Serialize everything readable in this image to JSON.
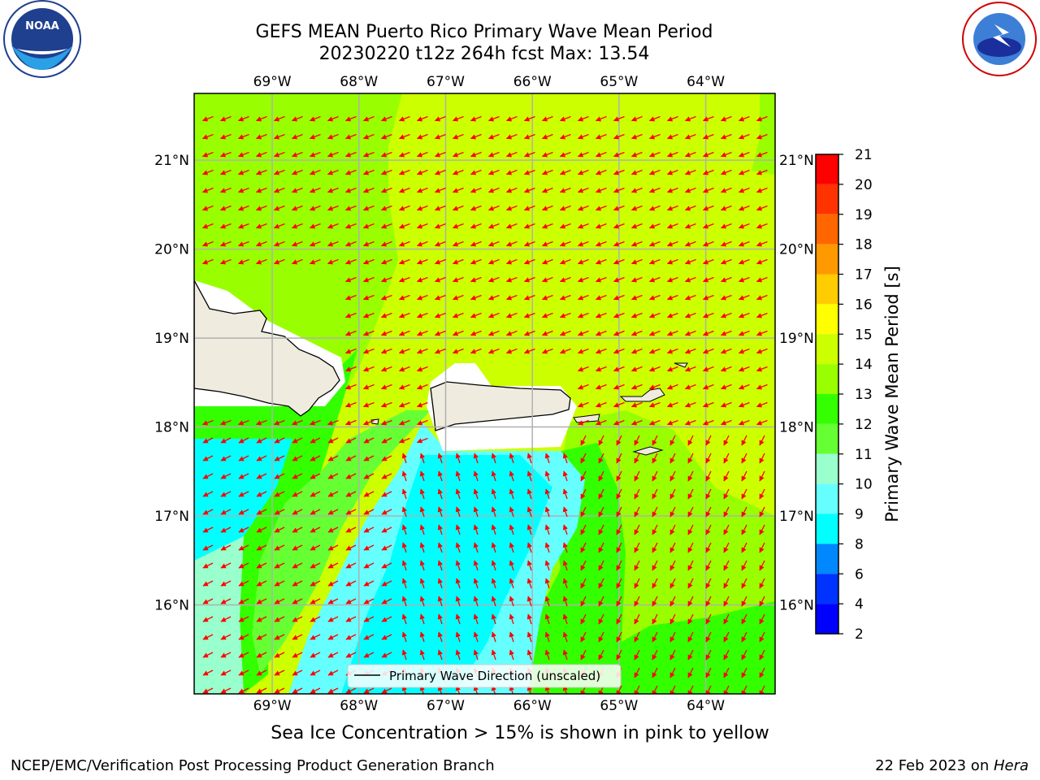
{
  "header": {
    "title_line1": "GEFS MEAN Puerto Rico Primary Wave Mean Period",
    "title_line2": "20230220 t12z 264h fcst   Max: 13.54"
  },
  "logos": {
    "left": {
      "icon": "noaa-logo-icon",
      "text": "NOAA"
    },
    "right": {
      "icon": "nws-logo-icon"
    }
  },
  "map": {
    "lon_labels": [
      "69°W",
      "68°W",
      "67°W",
      "66°W",
      "65°W",
      "64°W"
    ],
    "lat_labels": [
      "21°N",
      "20°N",
      "19°N",
      "18°N",
      "17°N",
      "16°N"
    ],
    "lon_values": [
      -69,
      -68,
      -67,
      -66,
      -65,
      -64
    ],
    "lat_values": [
      21,
      20,
      19,
      18,
      17,
      16
    ],
    "lon_range": [
      -69.9,
      -63.2
    ],
    "lat_range": [
      15.0,
      21.75
    ],
    "grid": true,
    "arrow_color": "#ff0000",
    "land_color": "#efecdf",
    "legend": {
      "label": "Primary Wave Direction (unscaled)",
      "placement": "lower-center"
    }
  },
  "colorbar": {
    "label": "Primary Wave Mean Period [s]",
    "ticks": [
      "21",
      "20",
      "19",
      "18",
      "17",
      "16",
      "15",
      "14",
      "13",
      "12",
      "11",
      "10",
      "9",
      "8",
      "6",
      "4",
      "2"
    ],
    "colors": [
      "#ff0000",
      "#ff3300",
      "#ff6600",
      "#ff9900",
      "#ffcc00",
      "#ffff00",
      "#ccff00",
      "#99ff00",
      "#33ff00",
      "#66ff33",
      "#99ffcc",
      "#66ffff",
      "#00ffff",
      "#0088ff",
      "#0033ff",
      "#0000ff"
    ]
  },
  "notes": {
    "sea_ice": "Sea Ice Concentration > 15% is shown in pink to yellow"
  },
  "footer": {
    "left": "NCEP/EMC/Verification Post Processing Product Generation Branch",
    "right_date": "22 Feb 2023 on ",
    "right_host": "Hera"
  }
}
